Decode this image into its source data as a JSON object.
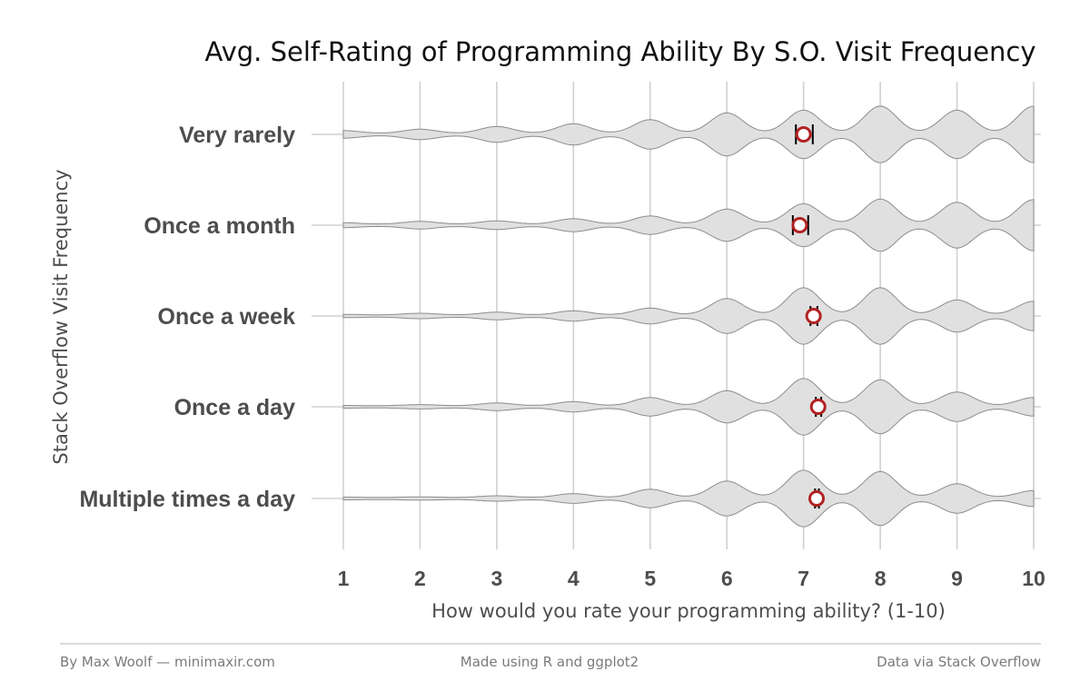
{
  "chart_data": {
    "type": "violin",
    "title": "Avg. Self-Rating of Programming Ability By S.O. Visit Frequency",
    "xlabel": "How would you rate your programming ability? (1-10)",
    "ylabel": "Stack Overflow Visit Frequency",
    "xlim": [
      1,
      10
    ],
    "x_ticks": [
      1,
      2,
      3,
      4,
      5,
      6,
      7,
      8,
      9,
      10
    ],
    "categories": [
      "Very rarely",
      "Once a month",
      "Once a week",
      "Once a day",
      "Multiple times a day"
    ],
    "x": [
      1,
      2,
      3,
      4,
      5,
      6,
      7,
      8,
      9,
      10
    ],
    "series": [
      {
        "category": "Very rarely",
        "density": [
          0.1,
          0.15,
          0.25,
          0.35,
          0.5,
          0.75,
          0.85,
          1.0,
          0.85,
          1.0
        ],
        "mean": 7.0,
        "ci": [
          6.9,
          7.12
        ]
      },
      {
        "category": "Once a month",
        "density": [
          0.05,
          0.1,
          0.12,
          0.2,
          0.3,
          0.55,
          0.75,
          0.92,
          0.8,
          0.9
        ],
        "mean": 6.95,
        "ci": [
          6.86,
          7.06
        ]
      },
      {
        "category": "Once a week",
        "density": [
          0.02,
          0.06,
          0.1,
          0.15,
          0.25,
          0.6,
          1.0,
          1.0,
          0.55,
          0.5
        ],
        "mean": 7.13,
        "ci": [
          7.09,
          7.18
        ]
      },
      {
        "category": "Once a day",
        "density": [
          0.01,
          0.04,
          0.1,
          0.15,
          0.3,
          0.55,
          1.0,
          0.95,
          0.5,
          0.3
        ],
        "mean": 7.19,
        "ci": [
          7.16,
          7.23
        ]
      },
      {
        "category": "Multiple times a day",
        "density": [
          0.01,
          0.02,
          0.06,
          0.14,
          0.3,
          0.6,
          1.0,
          0.95,
          0.5,
          0.25
        ],
        "mean": 7.17,
        "ci": [
          7.15,
          7.2
        ]
      }
    ],
    "grid": true,
    "colors": {
      "violin_fill": "#e0e0e0",
      "violin_stroke": "#8c8c8c",
      "mean_point": "#b22222",
      "error_bar": "#000000",
      "grid": "#d0d0d0"
    }
  },
  "footer": {
    "left": "By Max Woolf — minimaxir.com",
    "center": "Made using R and ggplot2",
    "right": "Data via Stack Overflow"
  }
}
